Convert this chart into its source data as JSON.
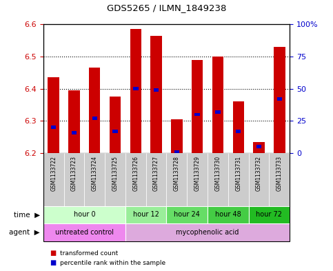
{
  "title": "GDS5265 / ILMN_1849238",
  "samples": [
    "GSM1133722",
    "GSM1133723",
    "GSM1133724",
    "GSM1133725",
    "GSM1133726",
    "GSM1133727",
    "GSM1133728",
    "GSM1133729",
    "GSM1133730",
    "GSM1133731",
    "GSM1133732",
    "GSM1133733"
  ],
  "bar_bottom": 6.2,
  "bar_tops": [
    6.435,
    6.395,
    6.465,
    6.375,
    6.585,
    6.565,
    6.305,
    6.49,
    6.5,
    6.36,
    6.235,
    6.53
  ],
  "percentile_values": [
    20,
    16,
    27,
    17,
    50,
    49,
    1,
    30,
    32,
    17,
    5,
    42
  ],
  "ylim": [
    6.2,
    6.6
  ],
  "yticks_left": [
    6.2,
    6.3,
    6.4,
    6.5,
    6.6
  ],
  "yticks_right": [
    0,
    25,
    50,
    75,
    100
  ],
  "bar_color": "#cc0000",
  "blue_color": "#0000cc",
  "time_groups": [
    {
      "label": "hour 0",
      "start": 0,
      "end": 4,
      "color": "#ccffcc"
    },
    {
      "label": "hour 12",
      "start": 4,
      "end": 6,
      "color": "#99ee99"
    },
    {
      "label": "hour 24",
      "start": 6,
      "end": 8,
      "color": "#66dd66"
    },
    {
      "label": "hour 48",
      "start": 8,
      "end": 10,
      "color": "#44cc44"
    },
    {
      "label": "hour 72",
      "start": 10,
      "end": 12,
      "color": "#22bb22"
    }
  ],
  "agent_groups": [
    {
      "label": "untreated control",
      "start": 0,
      "end": 4,
      "color": "#ee88ee"
    },
    {
      "label": "mycophenolic acid",
      "start": 4,
      "end": 12,
      "color": "#ddaadd"
    }
  ],
  "tick_label_color_left": "#cc0000",
  "tick_label_color_right": "#0000cc",
  "sample_bg_color": "#cccccc",
  "legend_red_label": "transformed count",
  "legend_blue_label": "percentile rank within the sample"
}
